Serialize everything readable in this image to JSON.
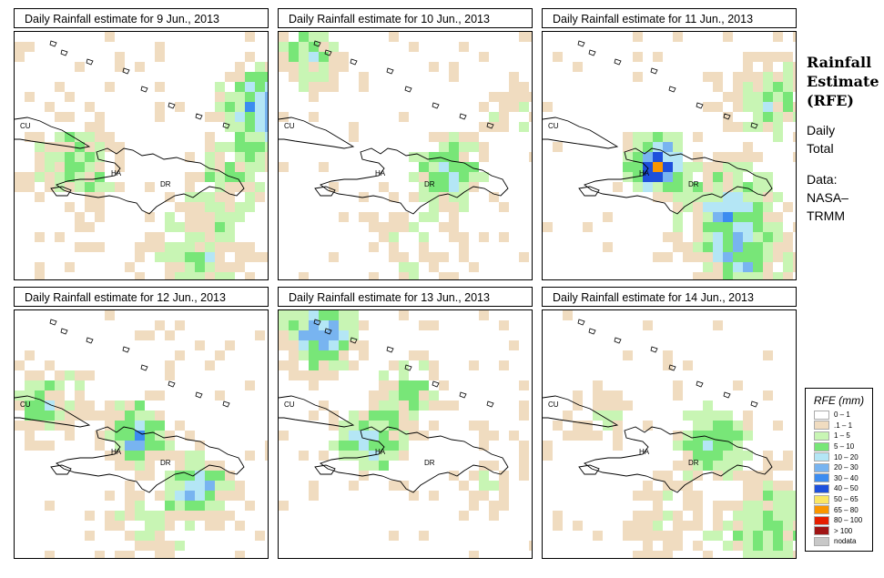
{
  "panels": [
    {
      "title": "Daily Rainfall estimate for  9 Jun., 2013"
    },
    {
      "title": "Daily Rainfall estimate for  10 Jun., 2013"
    },
    {
      "title": "Daily Rainfall estimate for  11 Jun., 2013"
    },
    {
      "title": "Daily Rainfall estimate for  12 Jun., 2013"
    },
    {
      "title": "Daily Rainfall estimate for  13 Jun., 2013"
    },
    {
      "title": "Daily Rainfall estimate for  14 Jun., 2013"
    }
  ],
  "map_labels": {
    "cu": "CU",
    "ha": "HA",
    "dr": "DR"
  },
  "side": {
    "title_line1": "Rainfall",
    "title_line2": "Estimate",
    "title_line3": "(RFE)",
    "sub_line1": "Daily",
    "sub_line2": "Total",
    "data_line1": "Data:",
    "data_line2": "NASA–",
    "data_line3": "TRMM"
  },
  "legend": {
    "title": "RFE (mm)",
    "items": [
      {
        "label": "0 – 1",
        "color": "#ffffff"
      },
      {
        "label": ".1 – 1",
        "color": "#f0dcc0"
      },
      {
        "label": "1 – 5",
        "color": "#c8f5b4"
      },
      {
        "label": "5 – 10",
        "color": "#78e678"
      },
      {
        "label": "10 – 20",
        "color": "#b4e6f5"
      },
      {
        "label": "20 – 30",
        "color": "#78b4f0"
      },
      {
        "label": "30 – 40",
        "color": "#3c8cf0"
      },
      {
        "label": "40 – 50",
        "color": "#1e50dc"
      },
      {
        "label": "50 – 65",
        "color": "#fae664"
      },
      {
        "label": "65 – 80",
        "color": "#fa9600"
      },
      {
        "label": "80 – 100",
        "color": "#e61e00"
      },
      {
        "label": "> 100",
        "color": "#a01414"
      },
      {
        "label": "nodata",
        "color": "#c8c8c8"
      }
    ]
  }
}
